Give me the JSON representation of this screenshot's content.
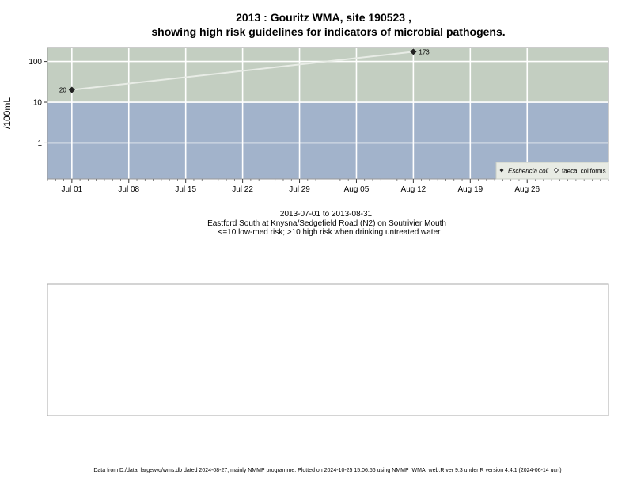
{
  "title_line1": "2013 : Gouritz WMA, site 190523 ,",
  "title_line2": "showing high risk guidelines for indicators of microbial pathogens.",
  "caption": {
    "date_range": "2013-07-01 to 2013-08-31",
    "site_description": "Eastford South at Knysna/Sedgefield Road (N2) on Soutrivier Mouth",
    "risk_note": "<=10 low-med risk; >10 high risk when drinking untreated water"
  },
  "footer": "Data from D:/data_large/wq/wms.db dated 2024-08-27, mainly NMMP programme. Plotted on 2024-10-25 15:06:56 using NMMP_WMA_web.R ver 9.3 under R version 4.4.1 (2024-06-14 ucrt)",
  "colors": {
    "high_risk_band": "#c3cec1",
    "low_risk_band": "#a2b3cb",
    "gridline": "#ffffff",
    "series_line": "#e8ece6",
    "point": "#222222"
  },
  "chart_data": {
    "type": "line",
    "ylabel": "/100mL",
    "y_scale": "log",
    "y_ticks": [
      1,
      10,
      100
    ],
    "y_tick_labels": [
      "1",
      "10",
      "100"
    ],
    "ylim": [
      0.13,
      220
    ],
    "x_type": "date",
    "xlim": [
      "2013-06-28",
      "2013-09-05"
    ],
    "x_ticks": [
      "2013-07-01",
      "2013-07-08",
      "2013-07-15",
      "2013-07-22",
      "2013-07-29",
      "2013-08-05",
      "2013-08-12",
      "2013-08-19",
      "2013-08-26"
    ],
    "x_tick_labels": [
      "Jul 01",
      "Jul 08",
      "Jul 15",
      "Jul 22",
      "Jul 29",
      "Aug 05",
      "Aug 12",
      "Aug 19",
      "Aug 26"
    ],
    "risk_threshold": 10,
    "series": [
      {
        "name": "Eschericia coli",
        "marker": "filled-diamond",
        "points": [
          {
            "x": "2013-07-01",
            "y": 20,
            "label": "20"
          },
          {
            "x": "2013-08-12",
            "y": 173,
            "label": "173"
          }
        ]
      },
      {
        "name": "faecal coliforms",
        "marker": "open-diamond",
        "points": []
      }
    ],
    "legend_position": "bottom-right"
  }
}
